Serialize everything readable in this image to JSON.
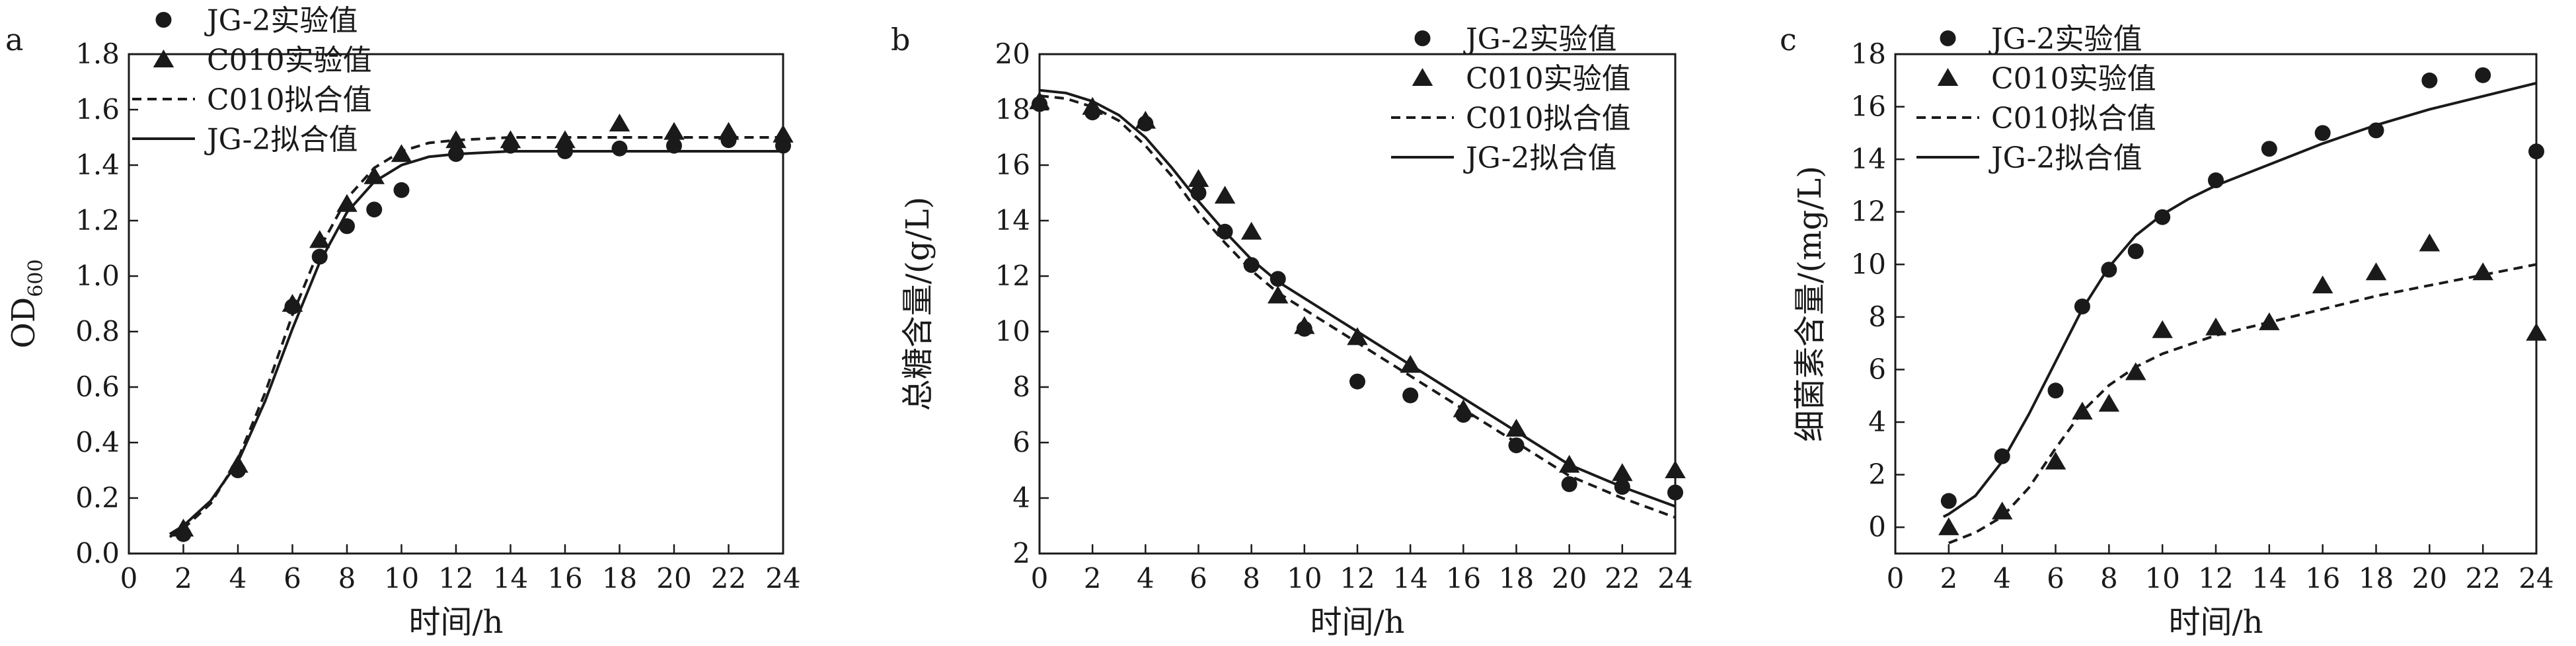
{
  "chart_data": [
    {
      "type": "scatter",
      "panel": "a",
      "xlabel": "时间/h",
      "ylabel_main": "OD",
      "ylabel_sub": "600",
      "xlim": [
        0,
        24
      ],
      "ylim": [
        0.0,
        1.8
      ],
      "xticks": [
        "0",
        "2",
        "4",
        "6",
        "8",
        "10",
        "12",
        "14",
        "16",
        "18",
        "20",
        "22",
        "24"
      ],
      "yticks": [
        "0.0",
        "0.2",
        "0.4",
        "0.6",
        "0.8",
        "1.0",
        "1.2",
        "1.4",
        "1.6",
        "1.8"
      ],
      "legend": [
        "JG-2实验值",
        "C010实验值",
        "C010拟合值",
        "JG-2拟合值"
      ],
      "series": [
        {
          "name": "JG-2实验值",
          "kind": "marker",
          "marker": "circle",
          "x": [
            2,
            4,
            6,
            7,
            8,
            9,
            10,
            12,
            14,
            16,
            18,
            20,
            22,
            24
          ],
          "y": [
            0.07,
            0.3,
            0.89,
            1.07,
            1.18,
            1.24,
            1.31,
            1.44,
            1.47,
            1.45,
            1.46,
            1.47,
            1.49,
            1.47
          ]
        },
        {
          "name": "C010实验值",
          "kind": "marker",
          "marker": "triangle",
          "x": [
            2,
            4,
            6,
            7,
            8,
            9,
            10,
            12,
            14,
            16,
            18,
            20,
            22,
            24
          ],
          "y": [
            0.09,
            0.32,
            0.9,
            1.13,
            1.26,
            1.36,
            1.44,
            1.49,
            1.49,
            1.49,
            1.55,
            1.52,
            1.52,
            1.51
          ]
        },
        {
          "name": "C010拟合值",
          "kind": "line",
          "style": "dashed",
          "x": [
            1.5,
            2,
            3,
            4,
            5,
            6,
            7,
            8,
            9,
            10,
            11,
            12,
            14,
            16,
            18,
            20,
            22,
            24
          ],
          "y": [
            0.06,
            0.09,
            0.18,
            0.34,
            0.58,
            0.86,
            1.1,
            1.28,
            1.39,
            1.45,
            1.48,
            1.49,
            1.5,
            1.5,
            1.5,
            1.5,
            1.5,
            1.5
          ]
        },
        {
          "name": "JG-2拟合值",
          "kind": "line",
          "style": "solid",
          "x": [
            1.5,
            2,
            3,
            4,
            5,
            6,
            7,
            8,
            9,
            10,
            11,
            12,
            14,
            16,
            18,
            20,
            22,
            24
          ],
          "y": [
            0.07,
            0.1,
            0.19,
            0.33,
            0.55,
            0.81,
            1.05,
            1.23,
            1.34,
            1.4,
            1.43,
            1.44,
            1.45,
            1.45,
            1.45,
            1.45,
            1.45,
            1.45
          ]
        }
      ]
    },
    {
      "type": "scatter",
      "panel": "b",
      "xlabel": "时间/h",
      "ylabel": "总糖含量/(g/L)",
      "xlim": [
        0,
        24
      ],
      "ylim": [
        2,
        20
      ],
      "xticks": [
        "0",
        "2",
        "4",
        "6",
        "8",
        "10",
        "12",
        "14",
        "16",
        "18",
        "20",
        "22",
        "24"
      ],
      "yticks": [
        "2",
        "4",
        "6",
        "8",
        "10",
        "12",
        "14",
        "16",
        "18",
        "20"
      ],
      "legend": [
        "JG-2实验值",
        "C010实验值",
        "C010拟合值",
        "JG-2拟合值"
      ],
      "series": [
        {
          "name": "JG-2实验值",
          "kind": "marker",
          "marker": "circle",
          "x": [
            0,
            2,
            4,
            6,
            7,
            8,
            9,
            10,
            12,
            14,
            16,
            18,
            20,
            22,
            24
          ],
          "y": [
            18.2,
            17.9,
            17.5,
            15.0,
            13.6,
            12.4,
            11.9,
            10.1,
            8.2,
            7.7,
            7.0,
            5.9,
            4.5,
            4.4,
            4.2
          ]
        },
        {
          "name": "C010实验值",
          "kind": "marker",
          "marker": "triangle",
          "x": [
            0,
            2,
            4,
            6,
            7,
            8,
            9,
            10,
            12,
            14,
            16,
            18,
            20,
            22,
            24
          ],
          "y": [
            18.3,
            18.1,
            17.6,
            15.5,
            14.9,
            13.6,
            11.3,
            10.2,
            9.8,
            8.8,
            7.2,
            6.5,
            5.2,
            4.9,
            5.0
          ]
        },
        {
          "name": "C010拟合值",
          "kind": "line",
          "style": "dashed",
          "x": [
            0,
            1,
            2,
            3,
            4,
            5,
            6,
            7,
            8,
            9,
            10,
            12,
            14,
            16,
            18,
            20,
            22,
            24
          ],
          "y": [
            18.5,
            18.4,
            18.1,
            17.6,
            16.7,
            15.6,
            14.3,
            13.2,
            12.2,
            11.4,
            10.8,
            9.6,
            8.4,
            7.2,
            6.0,
            4.8,
            4.0,
            3.3
          ]
        },
        {
          "name": "JG-2拟合值",
          "kind": "line",
          "style": "solid",
          "x": [
            0,
            1,
            2,
            3,
            4,
            5,
            6,
            7,
            8,
            9,
            10,
            12,
            14,
            16,
            18,
            20,
            22,
            24
          ],
          "y": [
            18.7,
            18.6,
            18.3,
            17.8,
            17.0,
            15.9,
            14.7,
            13.6,
            12.6,
            11.8,
            11.2,
            10.0,
            8.8,
            7.6,
            6.4,
            5.2,
            4.4,
            3.7
          ]
        }
      ]
    },
    {
      "type": "scatter",
      "panel": "c",
      "xlabel": "时间/h",
      "ylabel": "细菌素含量/(mg/L)",
      "xlim": [
        0,
        24
      ],
      "ylim": [
        -1,
        18
      ],
      "xticks": [
        "0",
        "2",
        "4",
        "6",
        "8",
        "10",
        "12",
        "14",
        "16",
        "18",
        "20",
        "22",
        "24"
      ],
      "yticks": [
        "0",
        "2",
        "4",
        "6",
        "8",
        "10",
        "12",
        "14",
        "16",
        "18"
      ],
      "legend": [
        "JG-2实验值",
        "C010实验值",
        "C010拟合值",
        "JG-2拟合值"
      ],
      "series": [
        {
          "name": "JG-2实验值",
          "kind": "marker",
          "marker": "circle",
          "x": [
            2,
            4,
            6,
            7,
            8,
            9,
            10,
            12,
            14,
            16,
            18,
            20,
            22,
            24
          ],
          "y": [
            1.0,
            2.7,
            5.2,
            8.4,
            9.8,
            10.5,
            11.8,
            13.2,
            14.4,
            15.0,
            15.1,
            17.0,
            17.2,
            14.3
          ]
        },
        {
          "name": "C010实验值",
          "kind": "marker",
          "marker": "triangle",
          "x": [
            2,
            4,
            6,
            7,
            8,
            9,
            10,
            12,
            14,
            16,
            18,
            20,
            22,
            24
          ],
          "y": [
            0.0,
            0.6,
            2.5,
            4.4,
            4.7,
            5.9,
            7.5,
            7.6,
            7.8,
            9.2,
            9.7,
            10.8,
            9.7,
            7.4
          ]
        },
        {
          "name": "C010拟合值",
          "kind": "line",
          "style": "dashed",
          "x": [
            2,
            3,
            4,
            5,
            6,
            7,
            8,
            9,
            10,
            12,
            14,
            16,
            18,
            20,
            22,
            24
          ],
          "y": [
            -0.6,
            -0.2,
            0.4,
            1.5,
            3.0,
            4.4,
            5.4,
            6.1,
            6.6,
            7.3,
            7.8,
            8.3,
            8.8,
            9.2,
            9.6,
            10.0
          ]
        },
        {
          "name": "JG-2拟合值",
          "kind": "line",
          "style": "solid",
          "x": [
            1.8,
            2,
            3,
            4,
            5,
            6,
            7,
            8,
            9,
            10,
            11,
            12,
            14,
            16,
            18,
            20,
            22,
            24
          ],
          "y": [
            0.4,
            0.5,
            1.2,
            2.5,
            4.3,
            6.3,
            8.3,
            9.9,
            11.1,
            11.9,
            12.5,
            13.0,
            13.8,
            14.6,
            15.3,
            15.9,
            16.4,
            16.9
          ]
        }
      ]
    }
  ]
}
